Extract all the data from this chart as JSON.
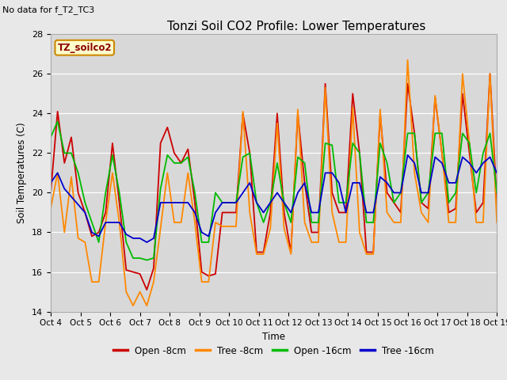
{
  "title": "Tonzi Soil CO2 Profile: Lower Temperatures",
  "subtitle": "No data for f_T2_TC3",
  "ylabel": "Soil Temperatures (C)",
  "xlabel": "Time",
  "legend_label": "TZ_soilco2",
  "ylim": [
    14,
    28
  ],
  "line_colors": [
    "#cc0000",
    "#ff8800",
    "#00bb00",
    "#0000cc"
  ],
  "legend_entries": [
    "Open -8cm",
    "Tree -8cm",
    "Open -16cm",
    "Tree -16cm"
  ],
  "x_tick_labels": [
    "Oct 4",
    "Oct 5",
    "Oct 6",
    "Oct 7",
    "Oct 8",
    "Oct 9",
    "Oct 10",
    "Oct 11",
    "Oct 12",
    "Oct 13",
    "Oct 14",
    "Oct 15",
    "Oct 16",
    "Oct 17",
    "Oct 18",
    "Oct 19"
  ],
  "open_8cm": [
    20.0,
    24.1,
    21.5,
    22.8,
    20.0,
    19.0,
    17.8,
    18.0,
    19.0,
    22.5,
    19.5,
    16.1,
    16.0,
    15.9,
    15.1,
    16.2,
    22.5,
    23.3,
    22.0,
    21.5,
    22.2,
    19.5,
    16.0,
    15.8,
    15.9,
    19.0,
    19.0,
    19.0,
    24.0,
    22.0,
    17.0,
    17.0,
    19.0,
    24.0,
    19.0,
    17.0,
    24.0,
    20.5,
    18.0,
    18.0,
    25.5,
    20.0,
    19.0,
    19.0,
    25.0,
    22.0,
    17.0,
    17.0,
    24.0,
    20.0,
    19.5,
    19.0,
    25.5,
    23.0,
    19.5,
    19.2,
    24.8,
    22.0,
    19.0,
    19.2,
    25.0,
    22.0,
    19.0,
    19.5,
    26.0,
    19.5
  ],
  "tree_8cm": [
    19.2,
    21.0,
    18.0,
    20.8,
    17.7,
    17.5,
    15.5,
    15.5,
    18.5,
    21.0,
    18.5,
    15.0,
    14.3,
    15.0,
    14.3,
    15.5,
    18.2,
    21.0,
    18.5,
    18.5,
    21.0,
    18.5,
    15.5,
    15.5,
    18.5,
    18.3,
    18.3,
    18.3,
    24.1,
    19.0,
    16.9,
    16.9,
    18.2,
    23.5,
    18.2,
    16.9,
    24.2,
    18.5,
    17.5,
    17.5,
    25.3,
    19.0,
    17.5,
    17.5,
    24.3,
    18.0,
    16.9,
    16.9,
    24.2,
    19.0,
    18.5,
    18.5,
    26.7,
    21.0,
    19.0,
    18.5,
    24.9,
    22.0,
    18.5,
    18.5,
    26.0,
    22.5,
    18.5,
    18.5,
    26.0,
    18.5
  ],
  "open_16cm": [
    22.8,
    23.6,
    22.0,
    22.0,
    21.0,
    19.5,
    18.5,
    17.5,
    20.0,
    21.9,
    20.0,
    17.5,
    16.7,
    16.7,
    16.6,
    16.7,
    20.2,
    21.9,
    21.5,
    21.5,
    21.8,
    20.0,
    17.5,
    17.5,
    20.0,
    19.5,
    19.5,
    19.5,
    21.8,
    22.0,
    19.5,
    18.5,
    19.5,
    21.5,
    19.5,
    18.5,
    21.8,
    21.5,
    18.5,
    18.5,
    22.5,
    22.4,
    19.5,
    19.5,
    22.5,
    22.0,
    18.5,
    18.5,
    22.5,
    21.5,
    19.5,
    20.0,
    23.0,
    23.0,
    19.5,
    20.0,
    23.0,
    23.0,
    19.5,
    20.0,
    23.0,
    22.5,
    20.0,
    22.0,
    23.0,
    20.0
  ],
  "tree_16cm": [
    20.5,
    21.0,
    20.2,
    19.8,
    19.4,
    19.0,
    18.0,
    17.8,
    18.5,
    18.5,
    18.5,
    17.9,
    17.7,
    17.7,
    17.5,
    17.7,
    19.5,
    19.5,
    19.5,
    19.5,
    19.5,
    19.0,
    18.0,
    17.8,
    19.0,
    19.5,
    19.5,
    19.5,
    20.0,
    20.5,
    19.5,
    19.0,
    19.5,
    20.0,
    19.5,
    19.0,
    20.0,
    20.5,
    19.0,
    19.0,
    21.0,
    21.0,
    20.5,
    19.0,
    20.5,
    20.5,
    19.0,
    19.0,
    20.8,
    20.5,
    20.0,
    20.0,
    21.9,
    21.5,
    20.0,
    20.0,
    21.8,
    21.5,
    20.5,
    20.5,
    21.8,
    21.5,
    21.0,
    21.5,
    21.8,
    21.0
  ]
}
